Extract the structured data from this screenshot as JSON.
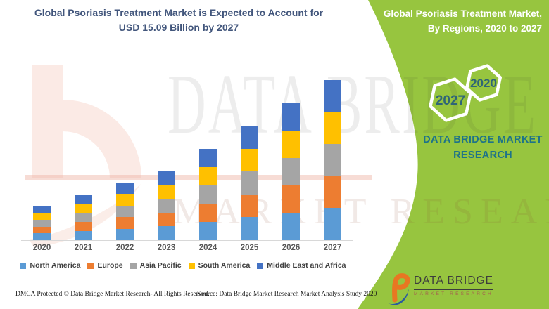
{
  "header": {
    "title_line1": "Global Psoriasis Treatment Market is Expected to Account for",
    "title_line2": "USD 15.09 Billion by 2027",
    "title_color": "#42567C"
  },
  "side_panel": {
    "title_line1": "Global Psoriasis Treatment Market,",
    "title_line2": "By Regions, 2020 to 2027",
    "hexagon_top": "2020",
    "hexagon_bottom": "2027",
    "brand_text": "DATA BRIDGE MARKET RESEARCH",
    "panel_green": "#97C53F",
    "brand_teal": "#1E7389",
    "hexagon_year_color": "#2F6577"
  },
  "logo": {
    "name": "DATA BRIDGE",
    "subtitle": "MARKET RESEARCH"
  },
  "watermark": {
    "line1": "DATA BRIDGE",
    "line2": "MARKET RESEARCH"
  },
  "footer": {
    "dmca": "DMCA Protected © Data Bridge Market Research- All Rights Reserved.",
    "source": "Source: Data Bridge Market Research Market Analysis Study 2020"
  },
  "chart_data": {
    "type": "bar",
    "stacked": true,
    "unit": "USD Billion",
    "title": "Global Psoriasis Treatment Market is Expected to Account for USD 15.09 Billion by 2027",
    "categories": [
      "2020",
      "2021",
      "2022",
      "2023",
      "2024",
      "2025",
      "2026",
      "2027"
    ],
    "totals_usd_billion": [
      3.2,
      4.3,
      5.45,
      6.5,
      8.6,
      10.8,
      12.9,
      15.09
    ],
    "ylim": [
      0,
      16
    ],
    "gridlines": false,
    "legend_position": "bottom",
    "series": [
      {
        "name": "North America",
        "color": "#5B9BD5",
        "values": [
          0.64,
          0.86,
          1.09,
          1.3,
          1.72,
          2.16,
          2.58,
          3.02
        ]
      },
      {
        "name": "Europe",
        "color": "#ED7D31",
        "values": [
          0.64,
          0.86,
          1.09,
          1.3,
          1.72,
          2.16,
          2.58,
          3.02
        ]
      },
      {
        "name": "Asia Pacific",
        "color": "#A5A5A5",
        "values": [
          0.64,
          0.86,
          1.09,
          1.3,
          1.72,
          2.16,
          2.58,
          3.02
        ]
      },
      {
        "name": "South America",
        "color": "#FFC000",
        "values": [
          0.64,
          0.86,
          1.09,
          1.3,
          1.72,
          2.16,
          2.58,
          3.02
        ]
      },
      {
        "name": "Middle East and Africa",
        "color": "#4472C4",
        "values": [
          0.64,
          0.86,
          1.09,
          1.3,
          1.72,
          2.16,
          2.58,
          3.02
        ]
      }
    ]
  }
}
